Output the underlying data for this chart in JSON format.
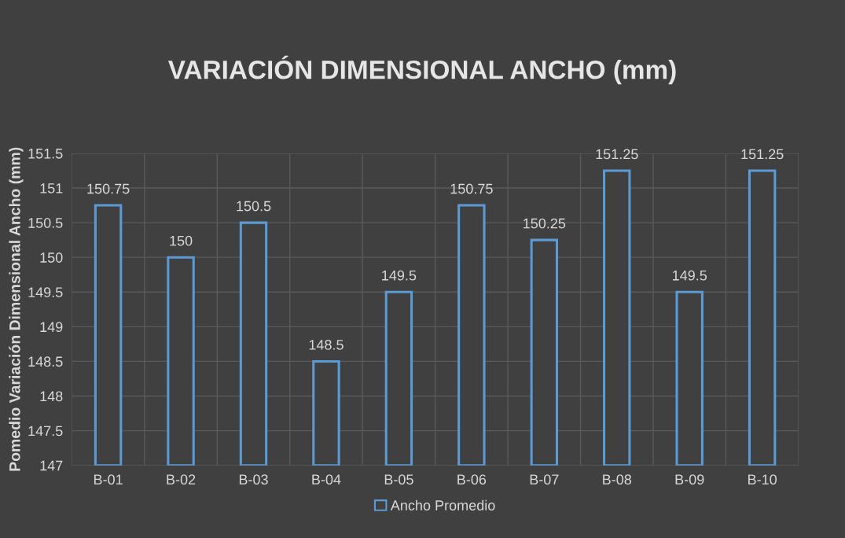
{
  "chart_data": {
    "type": "bar",
    "title": "VARIACIÓN DIMENSIONAL ANCHO (mm)",
    "ylabel": "Pomedio Variación Dimensional Ancho (mm)",
    "categories": [
      "B-01",
      "B-02",
      "B-03",
      "B-04",
      "B-05",
      "B-06",
      "B-07",
      "B-08",
      "B-09",
      "B-10"
    ],
    "series": [
      {
        "name": "Ancho Promedio",
        "color": "#5b9bd5",
        "values": [
          150.75,
          150,
          150.5,
          148.5,
          149.5,
          150.75,
          150.25,
          151.25,
          149.5,
          151.25
        ]
      }
    ],
    "ylim": [
      147,
      151.5
    ],
    "yticks": [
      147,
      147.5,
      148,
      148.5,
      149,
      149.5,
      150,
      150.5,
      151,
      151.5
    ],
    "grid": true,
    "legend": "bottom",
    "data_labels": true
  }
}
